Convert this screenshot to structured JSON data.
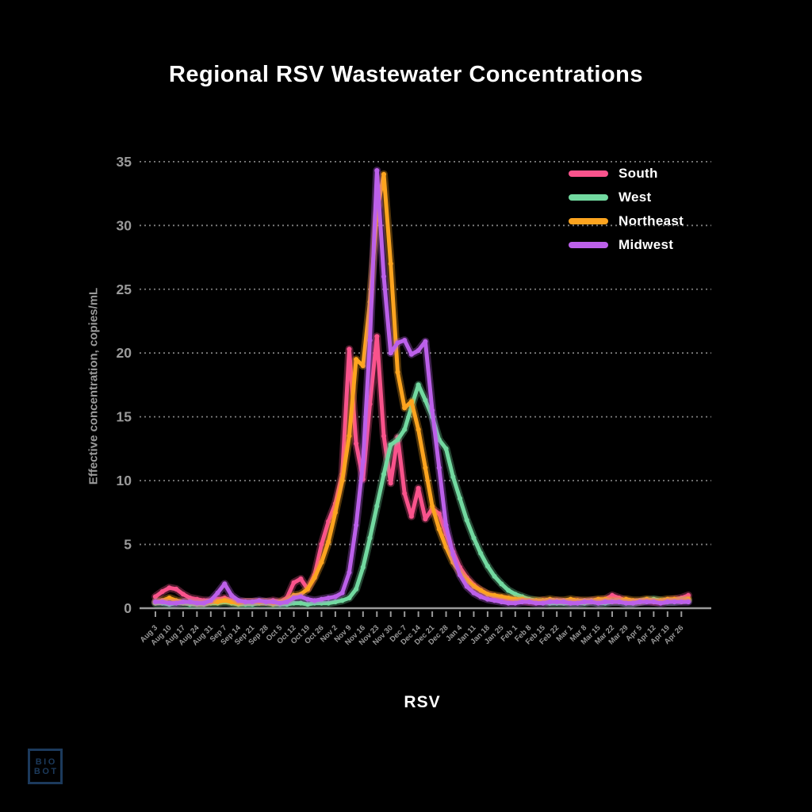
{
  "header": {
    "title": "Regional RSV Wastewater Concentrations"
  },
  "branding": {
    "logo_line1": "BIO",
    "logo_line2": "BOT",
    "logo_color": "#1c3a5c"
  },
  "colors": {
    "background": "#000000",
    "title_text": "#ffffff",
    "axis_text": "#9a9a9a",
    "grid": "#7e7e7e",
    "axis_line": "#9a9a9a",
    "south": "#f9538c",
    "west": "#72d9a0",
    "northeast": "#fca41f",
    "midwest": "#bc60ea"
  },
  "chart_data": {
    "type": "line",
    "title": "Regional RSV Wastewater Concentrations",
    "xlabel": "RSV",
    "ylabel": "Effective concentration, copies/mL",
    "ylim": [
      0,
      35
    ],
    "yticks": [
      0,
      5,
      10,
      15,
      20,
      25,
      30,
      35
    ],
    "grid": "horizontal-dotted",
    "legend_position": "top-right",
    "points_per_tick": 2,
    "x_tick_labels": [
      "Aug 3",
      "Aug 10",
      "Aug 17",
      "Aug 24",
      "Aug 31",
      "Sep 7",
      "Sep 14",
      "Sep 21",
      "Sep 28",
      "Oct 5",
      "Oct 12",
      "Oct 19",
      "Oct 26",
      "Nov 2",
      "Nov 9",
      "Nov 16",
      "Nov 23",
      "Nov 30",
      "Dec 7",
      "Dec 14",
      "Dec 21",
      "Dec 28",
      "Jan 4",
      "Jan 11",
      "Jan 18",
      "Jan 25",
      "Feb 1",
      "Feb 8",
      "Feb 15",
      "Feb 22",
      "Mar 1",
      "Mar 8",
      "Mar 15",
      "Mar 22",
      "Mar 29",
      "Apr 5",
      "Apr 12",
      "Apr 19",
      "Apr 26"
    ],
    "series": [
      {
        "name": "South",
        "color": "#f9538c",
        "values": [
          0.9,
          1.3,
          1.6,
          1.5,
          1.1,
          0.8,
          0.7,
          0.6,
          0.6,
          0.7,
          0.8,
          0.6,
          0.5,
          0.5,
          0.5,
          0.5,
          0.5,
          0.6,
          0.5,
          0.8,
          2.0,
          2.3,
          1.5,
          2.6,
          5.0,
          6.8,
          8.2,
          10.5,
          20.3,
          12.9,
          10.1,
          16.0,
          21.3,
          13.5,
          9.8,
          13.4,
          9.0,
          7.2,
          9.4,
          7.0,
          7.8,
          7.4,
          5.8,
          4.4,
          3.2,
          2.4,
          1.8,
          1.4,
          1.1,
          0.9,
          0.8,
          0.7,
          0.6,
          0.6,
          0.5,
          0.5,
          0.6,
          0.5,
          0.6,
          0.5,
          0.5,
          0.6,
          0.5,
          0.6,
          0.6,
          0.7,
          1.0,
          0.8,
          0.6,
          0.5,
          0.5,
          0.6,
          0.5,
          0.5,
          0.6,
          0.7,
          0.8,
          1.0
        ]
      },
      {
        "name": "West",
        "color": "#72d9a0",
        "values": [
          0.4,
          0.4,
          0.3,
          0.4,
          0.4,
          0.3,
          0.3,
          0.3,
          0.4,
          0.4,
          0.5,
          0.4,
          0.3,
          0.3,
          0.3,
          0.4,
          0.4,
          0.3,
          0.3,
          0.3,
          0.4,
          0.4,
          0.3,
          0.4,
          0.4,
          0.4,
          0.5,
          0.6,
          0.8,
          1.5,
          3.2,
          5.5,
          8.0,
          10.5,
          12.8,
          13.2,
          14.0,
          15.8,
          17.5,
          16.3,
          15.0,
          13.2,
          12.5,
          10.3,
          8.6,
          6.9,
          5.5,
          4.3,
          3.3,
          2.5,
          1.9,
          1.4,
          1.1,
          0.9,
          0.7,
          0.6,
          0.5,
          0.4,
          0.4,
          0.4,
          0.4,
          0.4,
          0.4,
          0.5,
          0.4,
          0.4,
          0.5,
          0.5,
          0.4,
          0.4,
          0.5,
          0.6,
          0.7,
          0.6,
          0.5,
          0.5,
          0.6,
          0.6
        ]
      },
      {
        "name": "Northeast",
        "color": "#fca41f",
        "values": [
          0.5,
          0.6,
          0.8,
          0.6,
          0.5,
          0.5,
          0.4,
          0.4,
          0.5,
          0.5,
          0.6,
          0.5,
          0.4,
          0.5,
          0.5,
          0.5,
          0.5,
          0.4,
          0.5,
          0.6,
          1.0,
          1.1,
          1.5,
          2.4,
          3.6,
          5.2,
          7.5,
          10.0,
          13.5,
          19.5,
          19.0,
          24.0,
          31.0,
          34.0,
          27.0,
          18.5,
          15.7,
          16.2,
          14.0,
          11.0,
          8.0,
          6.2,
          4.8,
          3.6,
          2.8,
          2.2,
          1.7,
          1.4,
          1.1,
          1.0,
          0.9,
          0.8,
          0.7,
          0.7,
          0.6,
          0.6,
          0.6,
          0.7,
          0.6,
          0.6,
          0.7,
          0.6,
          0.6,
          0.6,
          0.7,
          0.7,
          0.6,
          0.6,
          0.7,
          0.6,
          0.6,
          0.7,
          0.6,
          0.6,
          0.7,
          0.7,
          0.6,
          0.7
        ]
      },
      {
        "name": "Midwest",
        "color": "#bc60ea",
        "values": [
          0.5,
          0.5,
          0.4,
          0.4,
          0.5,
          0.5,
          0.4,
          0.4,
          0.6,
          1.2,
          1.9,
          1.0,
          0.6,
          0.5,
          0.5,
          0.6,
          0.5,
          0.5,
          0.4,
          0.5,
          0.8,
          0.9,
          0.7,
          0.6,
          0.7,
          0.8,
          0.9,
          1.2,
          2.8,
          6.5,
          11.5,
          21.0,
          34.3,
          26.0,
          20.0,
          20.8,
          21.0,
          19.9,
          20.2,
          20.9,
          15.5,
          11.0,
          6.5,
          4.2,
          2.6,
          1.7,
          1.2,
          0.9,
          0.7,
          0.6,
          0.5,
          0.4,
          0.4,
          0.5,
          0.5,
          0.4,
          0.4,
          0.5,
          0.5,
          0.5,
          0.4,
          0.4,
          0.5,
          0.5,
          0.4,
          0.5,
          0.5,
          0.5,
          0.4,
          0.4,
          0.5,
          0.5,
          0.5,
          0.4,
          0.5,
          0.5,
          0.5,
          0.5
        ]
      }
    ]
  }
}
